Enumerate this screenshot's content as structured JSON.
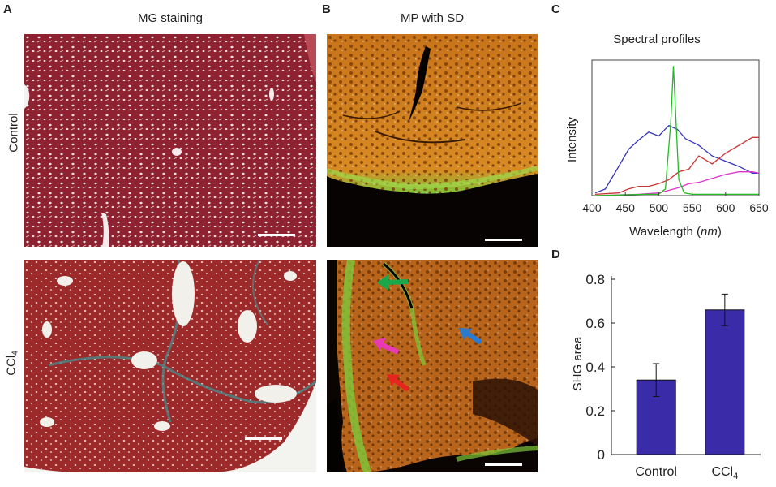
{
  "panels": {
    "A": {
      "letter": "A",
      "title": "MG staining"
    },
    "B": {
      "letter": "B",
      "title": "MP with SD"
    },
    "C": {
      "letter": "C",
      "title": "Spectral profiles"
    },
    "D": {
      "letter": "D"
    }
  },
  "rows": {
    "top": "Control",
    "bottom_main": "CCl",
    "bottom_sub": "4"
  },
  "colors": {
    "stain_red": "#8a1f2a",
    "collagen": "#4a8a8a",
    "mp_orange": "#c8741a",
    "bar_fill": "#3a2ba8"
  },
  "arrows": [
    {
      "name": "green-arrow",
      "color": "#1aa84a"
    },
    {
      "name": "magenta-arrow",
      "color": "#e83ab4"
    },
    {
      "name": "red-arrow",
      "color": "#e8241e"
    },
    {
      "name": "blue-arrow",
      "color": "#2a7ad0"
    }
  ],
  "chart_data": [
    {
      "type": "line",
      "title": "Spectral profiles",
      "xlabel_main": "Wavelength (",
      "xlabel_unit": "nm",
      "xlabel_end": ")",
      "ylabel": "Intensity",
      "xlim": [
        400,
        650
      ],
      "xticks": [
        400,
        450,
        500,
        550,
        600,
        650
      ],
      "series": [
        {
          "color": "#3333bb",
          "x": [
            405,
            420,
            440,
            455,
            470,
            485,
            500,
            515,
            528,
            540,
            560,
            580,
            600,
            620,
            640,
            650
          ],
          "y": [
            0.02,
            0.05,
            0.22,
            0.35,
            0.42,
            0.48,
            0.45,
            0.53,
            0.5,
            0.43,
            0.38,
            0.3,
            0.26,
            0.22,
            0.17,
            0.17
          ]
        },
        {
          "color": "#cc3333",
          "x": [
            405,
            440,
            455,
            470,
            485,
            500,
            515,
            530,
            545,
            560,
            580,
            600,
            620,
            640,
            650
          ],
          "y": [
            0.01,
            0.02,
            0.05,
            0.07,
            0.07,
            0.09,
            0.12,
            0.18,
            0.2,
            0.3,
            0.24,
            0.32,
            0.38,
            0.44,
            0.44
          ]
        },
        {
          "color": "#dd33cc",
          "x": [
            405,
            470,
            500,
            530,
            545,
            560,
            580,
            600,
            620,
            640,
            650
          ],
          "y": [
            0.0,
            0.01,
            0.02,
            0.06,
            0.09,
            0.1,
            0.13,
            0.16,
            0.18,
            0.18,
            0.17
          ]
        },
        {
          "color": "#22bb22",
          "x": [
            405,
            480,
            500,
            510,
            518,
            522,
            526,
            530,
            538,
            550,
            580,
            620,
            650
          ],
          "y": [
            0.0,
            0.01,
            0.01,
            0.05,
            0.55,
            0.98,
            0.55,
            0.12,
            0.02,
            0.01,
            0.01,
            0.01,
            0.01
          ]
        }
      ]
    },
    {
      "type": "bar",
      "ylabel": "SHG area",
      "categories": [
        "Control",
        "CCl4"
      ],
      "category_labels": [
        {
          "main": "Control",
          "sub": ""
        },
        {
          "main": "CCl",
          "sub": "4"
        }
      ],
      "values": [
        0.34,
        0.66
      ],
      "errors": [
        0.075,
        0.072
      ],
      "ylim": [
        0,
        0.8
      ],
      "yticks": [
        "0",
        "0.2",
        "0.4",
        "0.6",
        "0.8"
      ]
    }
  ]
}
